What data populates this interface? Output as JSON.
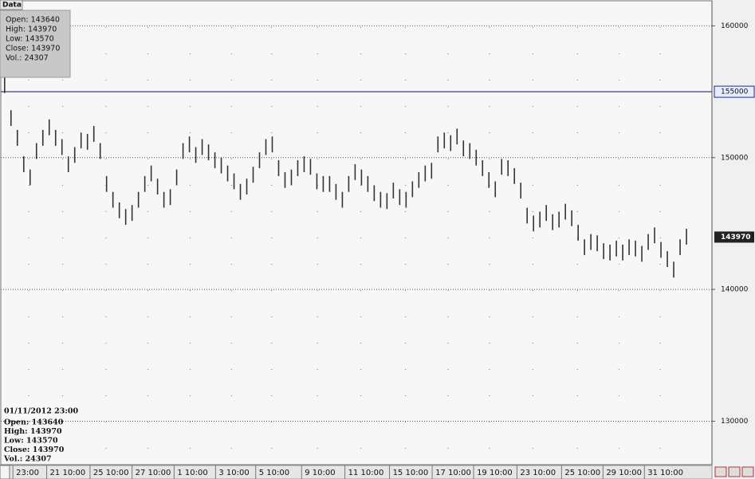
{
  "chart_data": {
    "type": "range-bar",
    "color": "#333333",
    "high": [
      156100,
      153600,
      152100,
      150100,
      149100,
      151100,
      152100,
      152900,
      152100,
      151400,
      150100,
      150800,
      151900,
      151800,
      152400,
      151100,
      148600,
      147400,
      146600,
      146100,
      146400,
      147400,
      148600,
      149400,
      148400,
      147400,
      147600,
      149100,
      151100,
      151600,
      150800,
      151400,
      151000,
      150400,
      150000,
      149400,
      148800,
      148000,
      148400,
      149300,
      150400,
      151400,
      151600,
      149800,
      148900,
      149100,
      149800,
      150100,
      149900,
      148800,
      148600,
      148600,
      148000,
      147400,
      148600,
      149500,
      149100,
      148600,
      147900,
      147400,
      147300,
      148100,
      147600,
      147400,
      148200,
      148900,
      149400,
      149600,
      151600,
      151900,
      151700,
      152200,
      151300,
      151100,
      150600,
      149800,
      148900,
      148200,
      149900,
      149800,
      149200,
      148100,
      146200,
      145600,
      145900,
      146400,
      145700,
      145900,
      146500,
      146000,
      144900,
      143800,
      144200,
      144100,
      143500,
      143400,
      143700,
      143400,
      143800,
      143700,
      143300,
      144200,
      144700,
      143600,
      142900,
      142100,
      143800,
      144600
    ],
    "low": [
      154900,
      152400,
      150900,
      148900,
      147900,
      149900,
      150900,
      151700,
      150900,
      150200,
      148900,
      149600,
      150700,
      150600,
      151200,
      149900,
      147400,
      146200,
      145400,
      144900,
      145200,
      146200,
      147400,
      148200,
      147200,
      146200,
      146400,
      147900,
      149900,
      150400,
      149600,
      150200,
      149800,
      149200,
      148800,
      148200,
      147600,
      146800,
      147200,
      148100,
      149200,
      150200,
      150400,
      148600,
      147700,
      147900,
      148600,
      148900,
      148700,
      147600,
      147400,
      147400,
      146800,
      146200,
      147400,
      148300,
      147900,
      147400,
      146700,
      146200,
      146100,
      146900,
      146400,
      146200,
      147000,
      147700,
      148200,
      148400,
      150400,
      150700,
      150500,
      151000,
      150100,
      149900,
      149400,
      148600,
      147700,
      147000,
      148700,
      148600,
      148000,
      146900,
      145000,
      144400,
      144700,
      145200,
      144500,
      144700,
      145300,
      144800,
      143700,
      142600,
      143000,
      142900,
      142300,
      142200,
      142500,
      142200,
      142600,
      142500,
      142100,
      143000,
      143500,
      142400,
      141700,
      140900,
      142600,
      143400
    ],
    "xlim": [
      -0.6,
      111
    ],
    "xticks": [
      {
        "value": 1.3,
        "label": "23:00"
      },
      {
        "value": 6.6,
        "label": "21 10:00"
      },
      {
        "value": 13.4,
        "label": "25 10:00"
      },
      {
        "value": 20,
        "label": "27 10:00"
      },
      {
        "value": 26.6,
        "label": "1 10:00"
      },
      {
        "value": 33.1,
        "label": "3 10:00"
      },
      {
        "value": 39.4,
        "label": "5 10:00"
      },
      {
        "value": 46.6,
        "label": "9 10:00"
      },
      {
        "value": 53.4,
        "label": "11 10:00"
      },
      {
        "value": 60.4,
        "label": "15 10:00"
      },
      {
        "value": 67.1,
        "label": "17 10:00"
      },
      {
        "value": 73.6,
        "label": "19 10:00"
      },
      {
        "value": 80.4,
        "label": "23 10:00"
      },
      {
        "value": 87.4,
        "label": "25 10:00"
      },
      {
        "value": 93.9,
        "label": "29 10:00"
      },
      {
        "value": 100.4,
        "label": "31 10:00"
      }
    ],
    "ylim": [
      126700,
      161900
    ],
    "yticks": [
      130000,
      140000,
      150000,
      160000
    ],
    "grid": true,
    "hline": {
      "value": 155000,
      "color": "#1f2a8c"
    },
    "last": {
      "value": 143970,
      "color": "#222222"
    },
    "info": {
      "title": "Data",
      "lines": [
        "Open: 143640",
        "High: 143970",
        "Low: 143570",
        "Close: 143970",
        "Vol.: 24307"
      ]
    },
    "footer": {
      "date": "01/11/2012 23:00",
      "lines": [
        "Open: 143640",
        "High: 143970",
        "Low: 143570",
        "Close: 143970",
        "Vol.: 24307"
      ]
    }
  }
}
